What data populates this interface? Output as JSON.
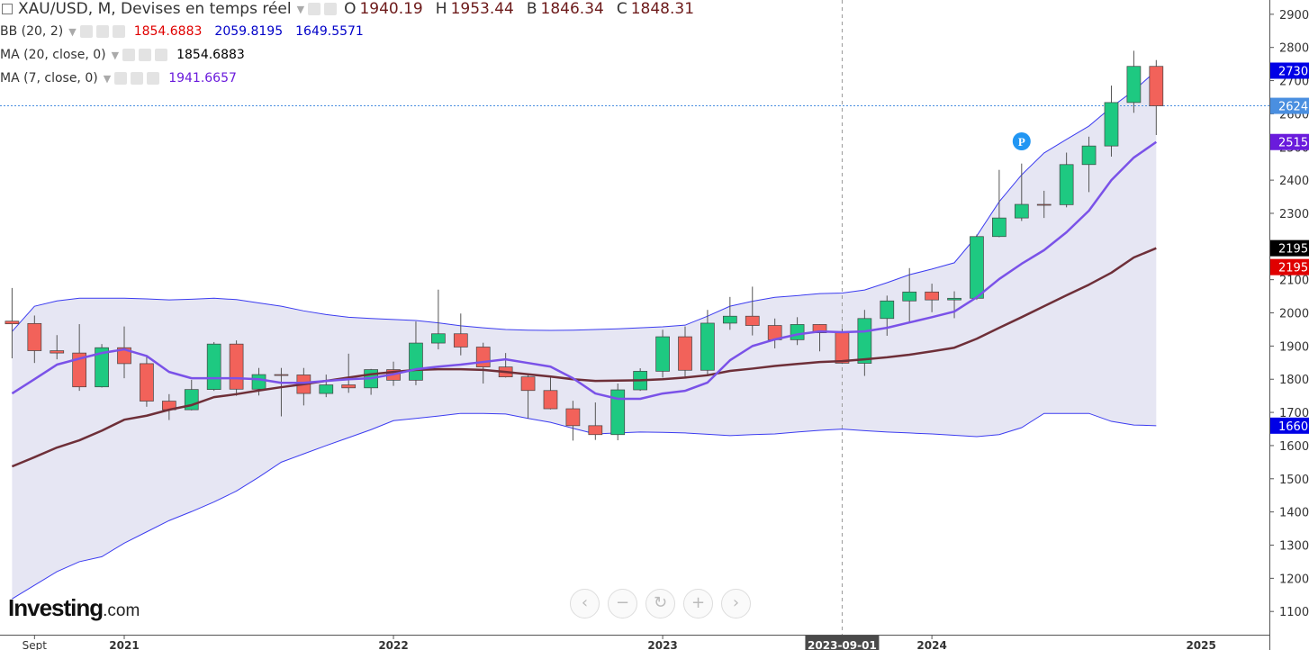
{
  "chart_data": {
    "type": "candlestick",
    "title": "XAU/USD, M, Devises en temps réel",
    "ohlc_letters": [
      "O",
      "H",
      "B",
      "C"
    ],
    "categories": [
      "2020-08-01",
      "2020-09-01",
      "2020-10-01",
      "2020-11-01",
      "2020-12-01",
      "2021-01-01",
      "2021-02-01",
      "2021-03-01",
      "2021-04-01",
      "2021-05-01",
      "2021-06-01",
      "2021-07-01",
      "2021-08-01",
      "2021-09-01",
      "2021-10-01",
      "2021-11-01",
      "2021-12-01",
      "2022-01-01",
      "2022-02-01",
      "2022-03-01",
      "2022-04-01",
      "2022-05-01",
      "2022-06-01",
      "2022-07-01",
      "2022-08-01",
      "2022-09-01",
      "2022-10-01",
      "2022-11-01",
      "2022-12-01",
      "2023-01-01",
      "2023-02-01",
      "2023-03-01",
      "2023-04-01",
      "2023-05-01",
      "2023-06-01",
      "2023-07-01",
      "2023-08-01",
      "2023-09-01",
      "2023-10-01",
      "2023-11-01",
      "2023-12-01",
      "2024-01-01",
      "2024-02-01",
      "2024-03-01",
      "2024-04-01",
      "2024-05-01",
      "2024-06-01",
      "2024-07-01",
      "2024-08-01",
      "2024-09-01",
      "2024-10-01",
      "2024-11-01"
    ],
    "open": [
      1975,
      1968,
      1886,
      1879,
      1777,
      1895,
      1847,
      1734,
      1708,
      1769,
      1906,
      1770,
      1814,
      1813,
      1757,
      1783,
      1774,
      1829,
      1797,
      1909,
      1937,
      1897,
      1837,
      1807,
      1766,
      1711,
      1660,
      1633,
      1768,
      1824,
      1928,
      1827,
      1969,
      1990,
      1962,
      1919,
      1965,
      1940.19,
      1848,
      1983,
      2036,
      2063,
      2039,
      2044,
      2230,
      2286,
      2327,
      2326,
      2447,
      2503,
      2634,
      2743
    ],
    "high": [
      2075,
      1992,
      1933,
      1966,
      1906,
      1959,
      1872,
      1755,
      1798,
      1912,
      1917,
      1834,
      1834,
      1834,
      1814,
      1877,
      1831,
      1853,
      1974,
      2070,
      1998,
      1910,
      1879,
      1814,
      1808,
      1735,
      1730,
      1787,
      1833,
      1949,
      1959,
      2009,
      2048,
      2079,
      1983,
      1987,
      1966,
      1953.44,
      2009,
      2052,
      2135,
      2088,
      2065,
      2236,
      2431,
      2450,
      2368,
      2483,
      2531,
      2685,
      2790,
      2762
    ],
    "low": [
      1863,
      1849,
      1860,
      1765,
      1775,
      1803,
      1717,
      1677,
      1706,
      1765,
      1750,
      1751,
      1688,
      1721,
      1746,
      1759,
      1753,
      1780,
      1782,
      1890,
      1872,
      1787,
      1805,
      1681,
      1709,
      1615,
      1617,
      1616,
      1765,
      1805,
      1804,
      1810,
      1949,
      1932,
      1893,
      1903,
      1884,
      1846.34,
      1810,
      1931,
      1973,
      2002,
      1984,
      2039,
      2228,
      2277,
      2286,
      2318,
      2364,
      2471,
      2603,
      2536
    ],
    "close": [
      1967,
      1886,
      1879,
      1777,
      1895,
      1847,
      1734,
      1708,
      1769,
      1906,
      1770,
      1814,
      1813,
      1757,
      1783,
      1774,
      1829,
      1797,
      1909,
      1937,
      1897,
      1837,
      1807,
      1766,
      1711,
      1660,
      1633,
      1768,
      1824,
      1928,
      1827,
      1969,
      1990,
      1962,
      1919,
      1965,
      1940,
      1848.31,
      1983,
      2036,
      2063,
      2039,
      2044,
      2230,
      2286,
      2327,
      2326,
      2447,
      2503,
      2634,
      2743,
      2624
    ],
    "up_color": "#1ec981",
    "down_color": "#f2625a",
    "indicators": [
      {
        "name": "BB (20, 2)",
        "type": "bands",
        "color": "#3c3cf0",
        "fill": "#e6e6f3",
        "upper": [
          1944,
          2020,
          2036,
          2044,
          2044,
          2044,
          2042,
          2039,
          2041,
          2044,
          2040,
          2030,
          2020,
          2006,
          1995,
          1987,
          1983,
          1980,
          1977,
          1970,
          1961,
          1955,
          1950,
          1948,
          1947,
          1948,
          1950,
          1952,
          1955,
          1958,
          1963,
          1990,
          2020,
          2035,
          2047,
          2052,
          2058,
          2059.8195,
          2069,
          2091,
          2115,
          2132,
          2151,
          2232,
          2335,
          2416,
          2482,
          2523,
          2563,
          2620,
          2670,
          2730
        ],
        "lower": [
          1138,
          1179,
          1220,
          1250,
          1265,
          1306,
          1340,
          1374,
          1401,
          1430,
          1463,
          1505,
          1550,
          1575,
          1600,
          1624,
          1648,
          1675,
          1682,
          1689,
          1697,
          1697,
          1695,
          1682,
          1670,
          1652,
          1635,
          1638,
          1641,
          1640,
          1638,
          1634,
          1630,
          1633,
          1635,
          1641,
          1646,
          1649.5571,
          1645,
          1641,
          1638,
          1635,
          1631,
          1627,
          1633,
          1654,
          1697,
          1697,
          1697,
          1673,
          1662,
          1660
        ]
      },
      {
        "name": "MA (20, close, 0)",
        "type": "line",
        "color": "#6e2f38",
        "values": [
          1537,
          1565,
          1594,
          1616,
          1645,
          1678,
          1690,
          1708,
          1722,
          1746,
          1755,
          1766,
          1776,
          1785,
          1795,
          1805,
          1815,
          1822,
          1828,
          1830,
          1830,
          1828,
          1822,
          1815,
          1808,
          1800,
          1795,
          1796,
          1797,
          1800,
          1805,
          1812,
          1825,
          1832,
          1840,
          1846,
          1852,
          1854.6883,
          1860,
          1866,
          1874,
          1884,
          1895,
          1922,
          1955,
          1987,
          2020,
          2053,
          2085,
          2121,
          2167,
          2195
        ]
      },
      {
        "name": "MA (7, close, 0)",
        "type": "line",
        "color": "#7a52e8",
        "values": [
          1757,
          1800,
          1844,
          1862,
          1879,
          1890,
          1870,
          1822,
          1803,
          1803,
          1803,
          1800,
          1789,
          1789,
          1795,
          1800,
          1803,
          1815,
          1830,
          1838,
          1844,
          1852,
          1860,
          1849,
          1838,
          1803,
          1757,
          1741,
          1741,
          1757,
          1765,
          1790,
          1857,
          1900,
          1920,
          1935,
          1944,
          1941.6657,
          1944,
          1955,
          1971,
          1987,
          2004,
          2047,
          2102,
          2148,
          2189,
          2243,
          2308,
          2400,
          2468,
          2515
        ]
      }
    ],
    "ylim": [
      1030,
      2943
    ],
    "yticks": [
      1100,
      1200,
      1300,
      1400,
      1500,
      1600,
      1700,
      1800,
      1900,
      2000,
      2100,
      2200,
      2300,
      2400,
      2500,
      2600,
      2700,
      2800,
      2900
    ],
    "xticks": [
      {
        "value": "2020-09-01",
        "label": "Sept"
      },
      "2021-01-01",
      "2022-01-01",
      "2023-01-01",
      "2024-01-01"
    ],
    "xticks_beyond": [
      "2025"
    ],
    "crosshair_x": "2023-09-01",
    "axis_markers": [
      {
        "value": 2730,
        "label": "2730.",
        "color": "#0000e6"
      },
      {
        "value": 2624,
        "label": "2624.",
        "color": "#4a8fe0"
      },
      {
        "value": 2515,
        "label": "2515.",
        "color": "#6a1bdc"
      },
      {
        "value": 2195,
        "label": "2195.",
        "color": "#000000"
      },
      {
        "value": 2195,
        "label": "2195.",
        "color": "#e00000"
      },
      {
        "value": 1660,
        "label": "1660.",
        "color": "#0000e6"
      }
    ],
    "event": {
      "label": "P",
      "x": "2024-05-01",
      "y": 2517
    },
    "logo": "Investing",
    "logo_suffix": ".com"
  }
}
